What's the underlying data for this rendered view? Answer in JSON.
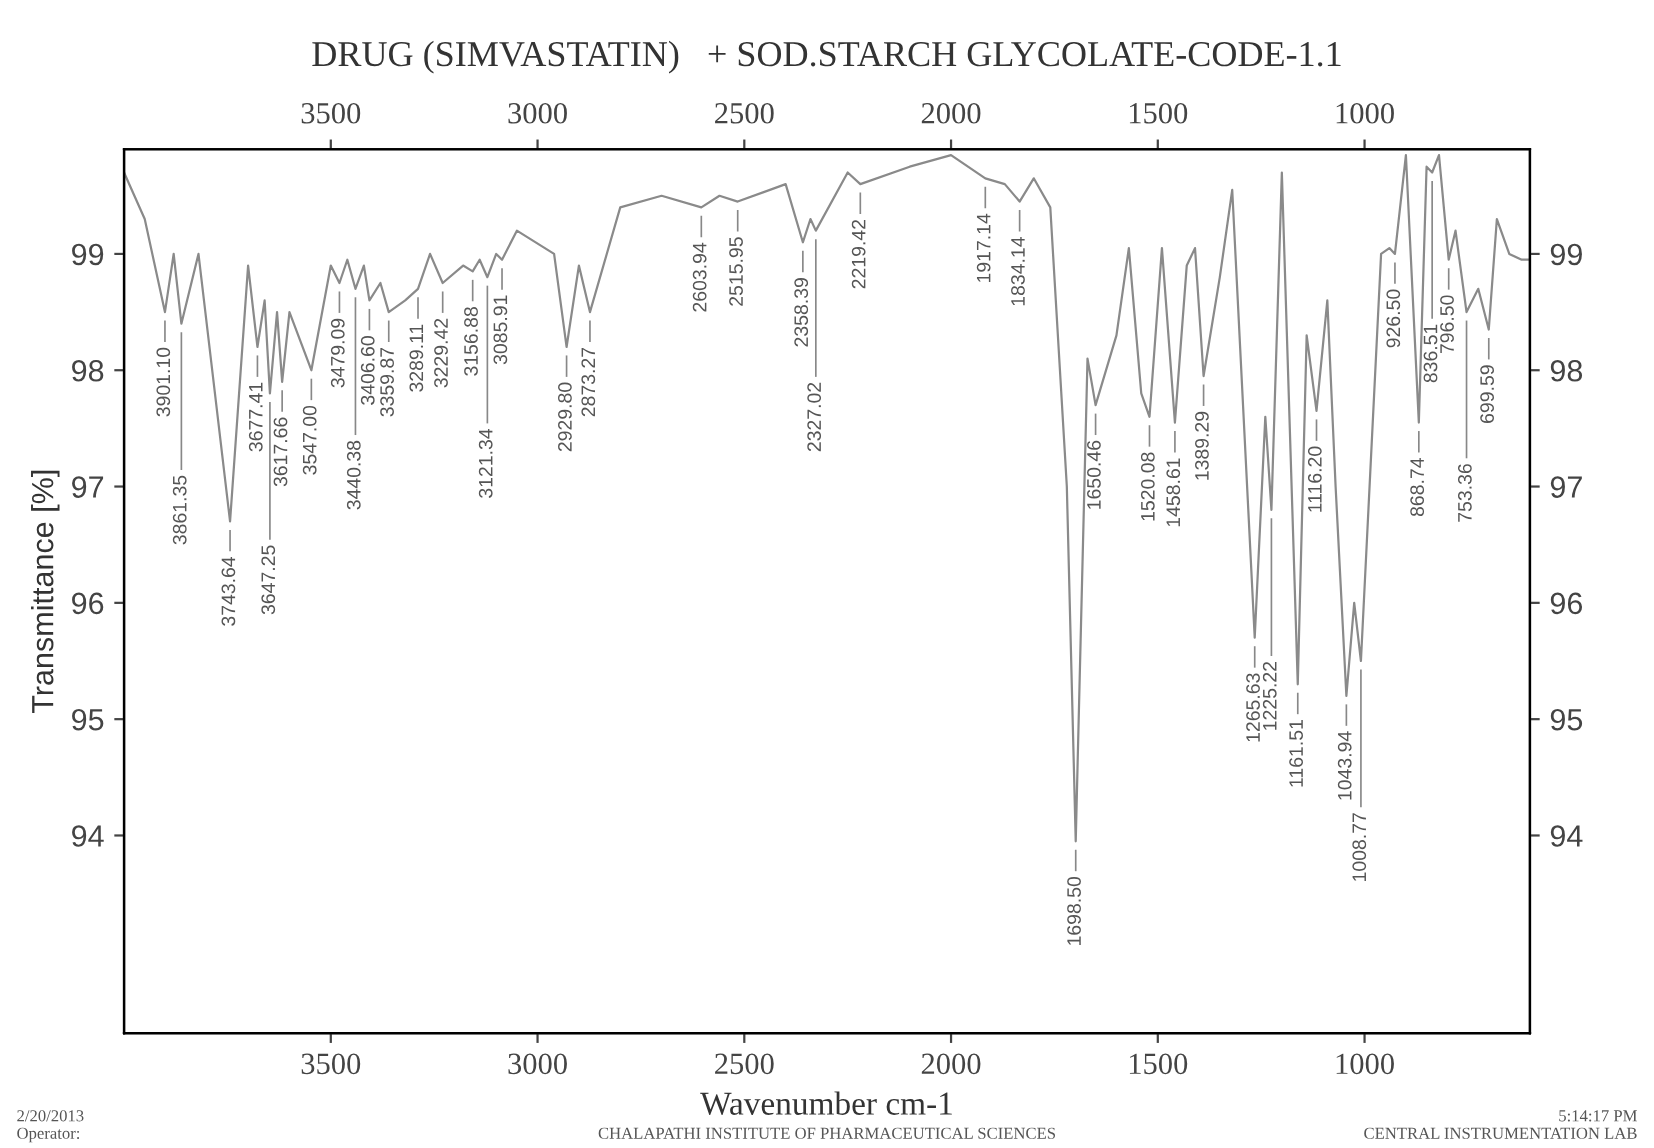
{
  "chart_data": {
    "type": "line",
    "title": "DRUG (SIMVASTATIN)   + SOD.STARCH GLYCOLATE-CODE-1.1",
    "xlabel": "Wavenumber cm-1",
    "ylabel": "Transmittance [%]",
    "xlim": [
      4000,
      600
    ],
    "xticks": [
      3500,
      3000,
      2500,
      2000,
      1500,
      1000
    ],
    "x2lim": [
      4000,
      600
    ],
    "x2ticks": [
      3500,
      3000,
      2500,
      2000,
      1500,
      1000
    ],
    "ylim": [
      92.3,
      99.9
    ],
    "yticks": [
      94,
      95,
      96,
      97,
      98,
      99
    ],
    "y2lim": [
      92.3,
      99.9
    ],
    "y2ticks": [
      94,
      95,
      96,
      97,
      98,
      99
    ],
    "grid": false,
    "legend": false,
    "marker": "none",
    "line_style": "solid",
    "series": [
      {
        "color": "#8a8a8a",
        "x": [
          4000,
          3950,
          3901.1,
          3880,
          3861.35,
          3820,
          3743.64,
          3700,
          3677.41,
          3660,
          3647.25,
          3630,
          3617.66,
          3600,
          3547.0,
          3500,
          3479.09,
          3460,
          3440.38,
          3420,
          3406.6,
          3380,
          3359.87,
          3320,
          3289.11,
          3260,
          3229.42,
          3180,
          3156.88,
          3140,
          3121.34,
          3100,
          3085.91,
          3050,
          2960,
          2929.8,
          2900,
          2873.27,
          2800,
          2700,
          2603.94,
          2560,
          2515.95,
          2400,
          2358.39,
          2340,
          2327.02,
          2250,
          2219.42,
          2100,
          2000,
          1917.14,
          1870,
          1834.14,
          1800,
          1760,
          1720,
          1698.5,
          1670,
          1650.46,
          1600,
          1570,
          1540,
          1520.08,
          1490,
          1458.61,
          1430,
          1410,
          1389.29,
          1350,
          1320,
          1265.63,
          1240,
          1225.22,
          1200,
          1161.51,
          1140,
          1116.2,
          1090,
          1070,
          1043.94,
          1025,
          1008.77,
          960,
          940,
          926.5,
          900,
          868.74,
          850,
          836.51,
          820,
          796.5,
          780,
          753.36,
          725,
          699.59,
          680,
          650,
          620,
          600
        ],
        "values": [
          99.7,
          99.3,
          98.5,
          99.0,
          98.4,
          99.0,
          96.7,
          98.9,
          98.2,
          98.6,
          97.8,
          98.5,
          97.9,
          98.5,
          98.0,
          98.9,
          98.75,
          98.95,
          98.7,
          98.9,
          98.6,
          98.75,
          98.5,
          98.6,
          98.7,
          99.0,
          98.75,
          98.9,
          98.85,
          98.95,
          98.8,
          99.0,
          98.95,
          99.2,
          99.0,
          98.2,
          98.9,
          98.5,
          99.4,
          99.5,
          99.4,
          99.5,
          99.45,
          99.6,
          99.1,
          99.3,
          99.2,
          99.7,
          99.6,
          99.75,
          99.85,
          99.65,
          99.6,
          99.45,
          99.65,
          99.4,
          97.0,
          93.95,
          98.1,
          97.7,
          98.3,
          99.05,
          97.8,
          97.6,
          99.05,
          97.55,
          98.9,
          99.05,
          97.95,
          98.8,
          99.55,
          95.7,
          97.6,
          96.8,
          99.7,
          95.3,
          98.3,
          97.65,
          98.6,
          97.0,
          95.2,
          96.0,
          95.5,
          99.0,
          99.05,
          99.0,
          99.85,
          97.55,
          99.75,
          99.7,
          99.85,
          98.95,
          99.2,
          98.5,
          98.7,
          98.35,
          99.3,
          99.0,
          98.95,
          98.95
        ]
      }
    ],
    "annotations": [
      {
        "text": "3901.10",
        "x": 3901.1,
        "y": 98.5
      },
      {
        "text": "3861.35",
        "x": 3861.35,
        "y": 98.4
      },
      {
        "text": "3743.64",
        "x": 3743.64,
        "y": 96.7
      },
      {
        "text": "3677.41",
        "x": 3677.41,
        "y": 98.2
      },
      {
        "text": "3647.25",
        "x": 3647.25,
        "y": 97.8
      },
      {
        "text": "3617.66",
        "x": 3617.66,
        "y": 97.9
      },
      {
        "text": "3547.00",
        "x": 3547.0,
        "y": 98.0
      },
      {
        "text": "3479.09",
        "x": 3479.09,
        "y": 98.75
      },
      {
        "text": "3440.38",
        "x": 3440.38,
        "y": 98.7
      },
      {
        "text": "3406.60",
        "x": 3406.6,
        "y": 98.6
      },
      {
        "text": "3359.87",
        "x": 3359.87,
        "y": 98.5
      },
      {
        "text": "3289.11",
        "x": 3289.11,
        "y": 98.7
      },
      {
        "text": "3229.42",
        "x": 3229.42,
        "y": 98.75
      },
      {
        "text": "3156.88",
        "x": 3156.88,
        "y": 98.85
      },
      {
        "text": "3121.34",
        "x": 3121.34,
        "y": 98.8
      },
      {
        "text": "3085.91",
        "x": 3085.91,
        "y": 98.95
      },
      {
        "text": "2929.80",
        "x": 2929.8,
        "y": 98.2
      },
      {
        "text": "2873.27",
        "x": 2873.27,
        "y": 98.5
      },
      {
        "text": "2603.94",
        "x": 2603.94,
        "y": 99.4
      },
      {
        "text": "2515.95",
        "x": 2515.95,
        "y": 99.45
      },
      {
        "text": "2358.39",
        "x": 2358.39,
        "y": 99.1
      },
      {
        "text": "2327.02",
        "x": 2327.02,
        "y": 99.2
      },
      {
        "text": "2219.42",
        "x": 2219.42,
        "y": 99.6
      },
      {
        "text": "1917.14",
        "x": 1917.14,
        "y": 99.65
      },
      {
        "text": "1834.14",
        "x": 1834.14,
        "y": 99.45
      },
      {
        "text": "1698.50",
        "x": 1698.5,
        "y": 93.95
      },
      {
        "text": "1650.46",
        "x": 1650.46,
        "y": 97.7
      },
      {
        "text": "1520.08",
        "x": 1520.08,
        "y": 97.6
      },
      {
        "text": "1458.61",
        "x": 1458.61,
        "y": 97.55
      },
      {
        "text": "1389.29",
        "x": 1389.29,
        "y": 97.95
      },
      {
        "text": "1265.63",
        "x": 1265.63,
        "y": 95.7
      },
      {
        "text": "1225.22",
        "x": 1225.22,
        "y": 96.8
      },
      {
        "text": "1161.51",
        "x": 1161.51,
        "y": 95.3
      },
      {
        "text": "1116.20",
        "x": 1116.2,
        "y": 97.65
      },
      {
        "text": "1043.94",
        "x": 1043.94,
        "y": 95.2
      },
      {
        "text": "1008.77",
        "x": 1008.77,
        "y": 95.5
      },
      {
        "text": "926.50",
        "x": 926.5,
        "y": 99.0
      },
      {
        "text": "868.74",
        "x": 868.74,
        "y": 97.55
      },
      {
        "text": "836.51",
        "x": 836.51,
        "y": 99.7
      },
      {
        "text": "796.50",
        "x": 796.5,
        "y": 98.95
      },
      {
        "text": "753.36",
        "x": 753.36,
        "y": 98.5
      },
      {
        "text": "699.59",
        "x": 699.59,
        "y": 98.35
      },
      "2/20/2013\nOperator:",
      "CHALAPATHI INSTITUTE OF PHARMACEUTICAL SCIENCES",
      "5:14:17 PM\nCENTRAL INSTRUMENTATION LAB"
    ]
  }
}
